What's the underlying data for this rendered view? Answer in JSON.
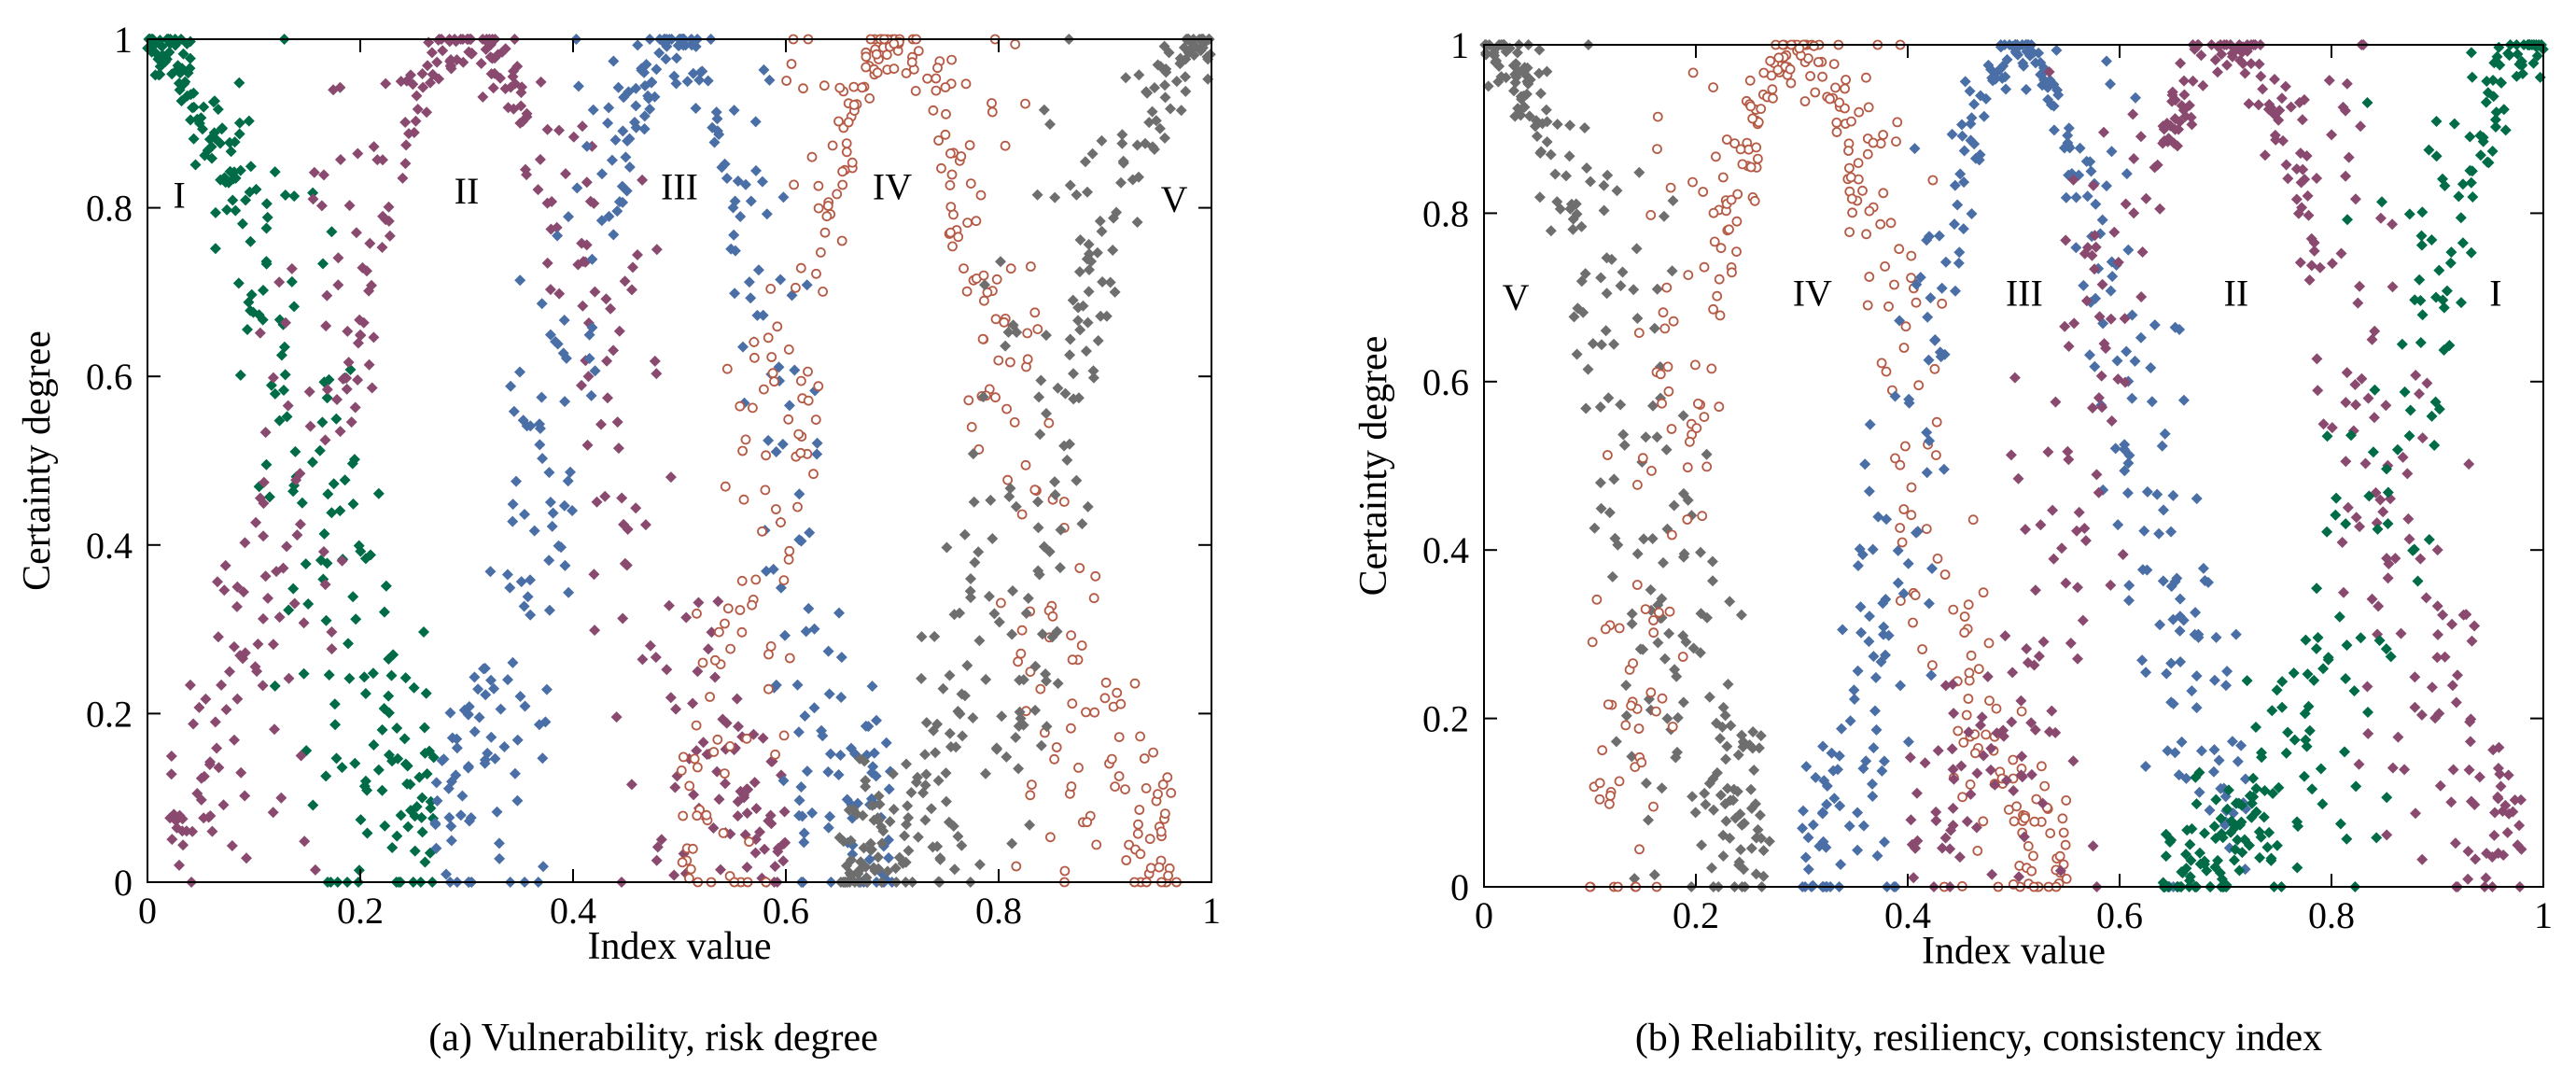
{
  "figure": {
    "panels": [
      {
        "caption": "(a) Vulnerability, risk degree"
      },
      {
        "caption": "(b) Reliability, resiliency, consistency index"
      }
    ]
  },
  "chart_data": [
    {
      "type": "scatter",
      "title": "(a) Vulnerability, risk degree",
      "xlabel": "Index value",
      "ylabel": "Certainty degree",
      "xlim": [
        0,
        1
      ],
      "ylim": [
        0,
        1
      ],
      "xticks": [
        0,
        0.2,
        0.4,
        0.6,
        0.8,
        1
      ],
      "yticks": [
        0,
        0.2,
        0.4,
        0.6,
        0.8,
        1
      ],
      "xtick_labels": [
        "0",
        "0.2",
        "0.4",
        "0.6",
        "0.8",
        "1"
      ],
      "ytick_labels": [
        "0",
        "0.2",
        "0.4",
        "0.6",
        "0.8",
        "1"
      ],
      "grid": false,
      "series": [
        {
          "name": "I",
          "label": "I",
          "label_at": [
            0.03,
            0.8
          ],
          "center": 0.0,
          "left_sigma": 0.12,
          "right_sigma": 0.12,
          "x_min": 0.0,
          "x_max": 0.27,
          "color": "#006b47",
          "marker": "diamond",
          "n": 260
        },
        {
          "name": "II",
          "label": "II",
          "label_at": [
            0.3,
            0.805
          ],
          "center": 0.3,
          "left_sigma": 0.12,
          "right_sigma": 0.12,
          "x_min": 0.02,
          "x_max": 0.6,
          "color": "#8a4a6f",
          "marker": "diamond",
          "n": 380
        },
        {
          "name": "III",
          "label": "III",
          "label_at": [
            0.5,
            0.81
          ],
          "center": 0.5,
          "left_sigma": 0.1,
          "right_sigma": 0.08,
          "x_min": 0.27,
          "x_max": 0.7,
          "color": "#4a6fa6",
          "marker": "diamond",
          "n": 340
        },
        {
          "name": "IV",
          "label": "IV",
          "label_at": [
            0.7,
            0.81
          ],
          "center": 0.7,
          "left_sigma": 0.09,
          "right_sigma": 0.1,
          "x_min": 0.5,
          "x_max": 0.97,
          "color": "#b55a45",
          "marker": "circle",
          "n": 340
        },
        {
          "name": "V",
          "label": "V",
          "label_at": [
            0.965,
            0.795
          ],
          "center": 1.0,
          "left_sigma": 0.13,
          "right_sigma": 0.13,
          "x_min": 0.65,
          "x_max": 1.0,
          "color": "#6e6e6e",
          "marker": "diamond",
          "n": 300
        }
      ]
    },
    {
      "type": "scatter",
      "title": "(b) Reliability, resiliency, consistency index",
      "xlabel": "Index value",
      "ylabel": "Certainty degree",
      "xlim": [
        0,
        1
      ],
      "ylim": [
        0,
        1
      ],
      "xticks": [
        0,
        0.2,
        0.4,
        0.6,
        0.8,
        1
      ],
      "yticks": [
        0,
        0.2,
        0.4,
        0.6,
        0.8,
        1
      ],
      "xtick_labels": [
        "0",
        "0.2",
        "0.4",
        "0.6",
        "0.8",
        "1"
      ],
      "ytick_labels": [
        "0",
        "0.2",
        "0.4",
        "0.6",
        "0.8",
        "1"
      ],
      "grid": false,
      "series": [
        {
          "name": "V",
          "label": "V",
          "label_at": [
            0.03,
            0.685
          ],
          "center": 0.0,
          "left_sigma": 0.12,
          "right_sigma": 0.12,
          "x_min": 0.0,
          "x_max": 0.27,
          "color": "#6e6e6e",
          "marker": "diamond",
          "n": 260
        },
        {
          "name": "IV",
          "label": "IV",
          "label_at": [
            0.31,
            0.69
          ],
          "center": 0.3,
          "left_sigma": 0.1,
          "right_sigma": 0.09,
          "x_min": 0.1,
          "x_max": 0.55,
          "color": "#b55a45",
          "marker": "circle",
          "n": 340
        },
        {
          "name": "III",
          "label": "III",
          "label_at": [
            0.51,
            0.69
          ],
          "center": 0.5,
          "left_sigma": 0.08,
          "right_sigma": 0.1,
          "x_min": 0.3,
          "x_max": 0.72,
          "color": "#4a6fa6",
          "marker": "diamond",
          "n": 340
        },
        {
          "name": "II",
          "label": "II",
          "label_at": [
            0.71,
            0.69
          ],
          "center": 0.7,
          "left_sigma": 0.12,
          "right_sigma": 0.12,
          "x_min": 0.4,
          "x_max": 0.98,
          "color": "#8a4a6f",
          "marker": "diamond",
          "n": 380
        },
        {
          "name": "I",
          "label": "I",
          "label_at": [
            0.955,
            0.69
          ],
          "center": 1.0,
          "left_sigma": 0.12,
          "right_sigma": 0.12,
          "x_min": 0.64,
          "x_max": 1.0,
          "color": "#006b47",
          "marker": "diamond",
          "n": 260
        }
      ]
    }
  ]
}
